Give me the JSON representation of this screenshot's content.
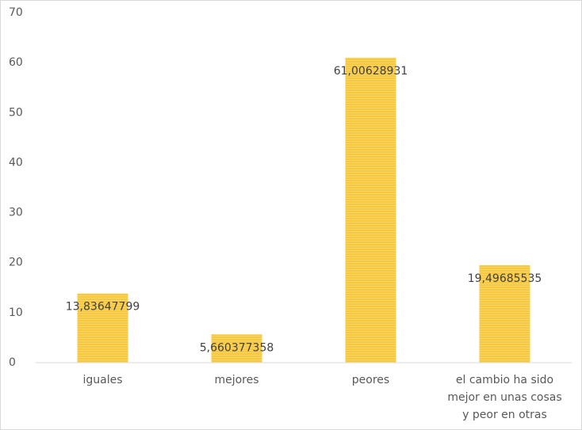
{
  "chart_data": {
    "type": "bar",
    "categories": [
      "iguales",
      "mejores",
      "peores",
      "el cambio ha sido mejor en unas cosas y peor en otras"
    ],
    "values": [
      13.83647799,
      5.660377358,
      61.00628931,
      19.49685535
    ],
    "value_labels": [
      "13,83647799",
      "5,660377358",
      "61,00628931",
      "19,49685535"
    ],
    "color": "#f7c83c",
    "ylim": [
      0,
      70
    ],
    "yticks": [
      0,
      10,
      20,
      30,
      40,
      50,
      60,
      70
    ],
    "grid": false
  }
}
